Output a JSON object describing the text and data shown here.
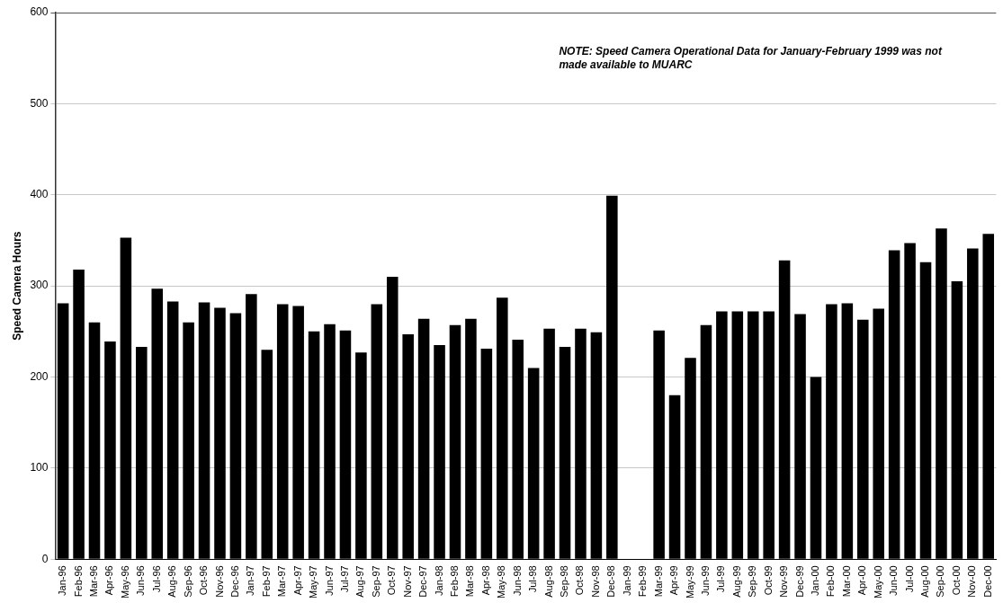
{
  "chart_data": {
    "type": "bar",
    "ylabel": "Speed Camera Hours",
    "categories": [
      "Jan-96",
      "Feb-96",
      "Mar-96",
      "Apr-96",
      "May-96",
      "Jun-96",
      "Jul-96",
      "Aug-96",
      "Sep-96",
      "Oct-96",
      "Nov-96",
      "Dec-96",
      "Jan-97",
      "Feb-97",
      "Mar-97",
      "Apr-97",
      "May-97",
      "Jun-97",
      "Jul-97",
      "Aug-97",
      "Sep-97",
      "Oct-97",
      "Nov-97",
      "Dec-97",
      "Jan-98",
      "Feb-98",
      "Mar-98",
      "Apr-98",
      "May-98",
      "Jun-98",
      "Jul-98",
      "Aug-98",
      "Sep-98",
      "Oct-98",
      "Nov-98",
      "Dec-98",
      "Jan-99",
      "Feb-99",
      "Mar-99",
      "Apr-99",
      "May-99",
      "Jun-99",
      "Jul-99",
      "Aug-99",
      "Sep-99",
      "Oct-99",
      "Nov-99",
      "Dec-99",
      "Jan-00",
      "Feb-00",
      "Mar-00",
      "Apr-00",
      "May-00",
      "Jun-00",
      "Jul-00",
      "Aug-00",
      "Sep-00",
      "Oct-00",
      "Nov-00",
      "Dec-00"
    ],
    "values": [
      281,
      318,
      260,
      239,
      353,
      233,
      297,
      283,
      260,
      282,
      276,
      270,
      291,
      230,
      280,
      278,
      250,
      258,
      251,
      227,
      280,
      310,
      247,
      264,
      235,
      257,
      264,
      231,
      287,
      241,
      210,
      253,
      233,
      253,
      249,
      399,
      null,
      null,
      251,
      180,
      221,
      257,
      272,
      272,
      272,
      272,
      328,
      269,
      200,
      280,
      281,
      263,
      275,
      339,
      347,
      326,
      363,
      305,
      341,
      357
    ],
    "color": "#000000",
    "ylim": [
      0,
      600
    ],
    "yticks": [
      0,
      100,
      200,
      300,
      400,
      500,
      600
    ],
    "grid": "y",
    "annotations": [
      "NOTE: Speed Camera Operational Data for January-February 1999 was not made available to MUARC"
    ]
  }
}
